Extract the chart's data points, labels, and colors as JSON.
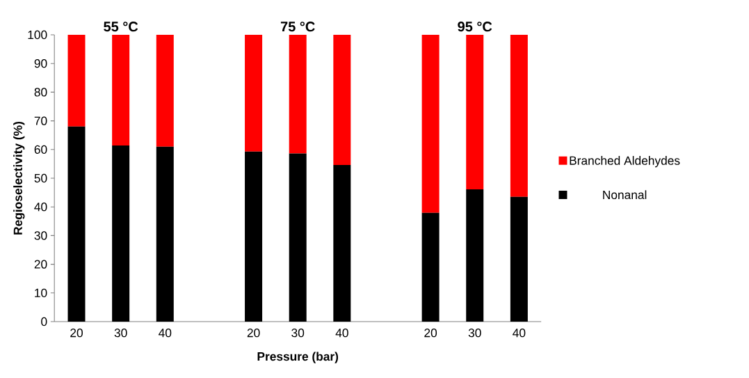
{
  "chart_data": {
    "type": "bar",
    "stacked": true,
    "xlabel": "Pressure (bar)",
    "ylabel": "Regioselectivity (%)",
    "categories": [
      "20",
      "30",
      "40",
      null,
      "20",
      "30",
      "40",
      null,
      "20",
      "30",
      "40"
    ],
    "series": [
      {
        "name": "Nonanal",
        "color": "#000000",
        "values": [
          68.0,
          61.4,
          61.0,
          null,
          59.3,
          58.6,
          54.6,
          null,
          37.9,
          46.1,
          43.5
        ]
      },
      {
        "name": "Branched Aldehydes",
        "color": "#ff0000",
        "values": [
          32.0,
          38.6,
          39.0,
          null,
          40.7,
          41.4,
          45.4,
          null,
          62.1,
          53.9,
          56.5
        ]
      }
    ],
    "ylim": [
      0,
      100
    ],
    "yticks": [
      0,
      10,
      20,
      30,
      40,
      50,
      60,
      70,
      80,
      90,
      100
    ],
    "annotations": [
      "55 °C",
      "75 °C",
      "95 °C"
    ],
    "grid": false,
    "legend": "right"
  }
}
